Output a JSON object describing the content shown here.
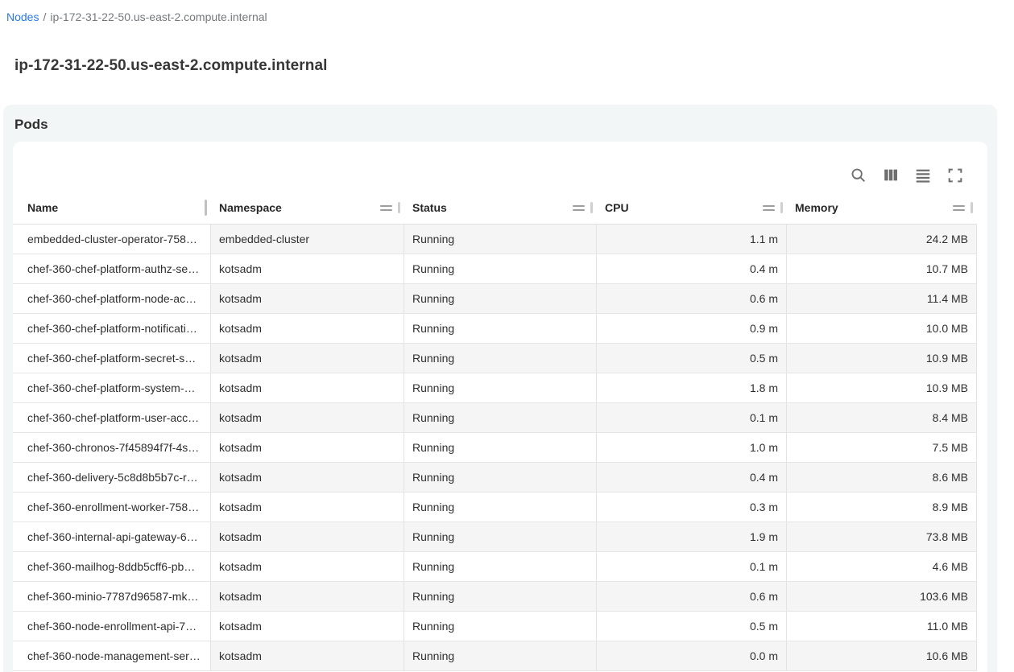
{
  "breadcrumb": {
    "link_label": "Nodes",
    "separator": "/",
    "current_label": "ip-172-31-22-50.us-east-2.compute.internal"
  },
  "page_title": "ip-172-31-22-50.us-east-2.compute.internal",
  "pods_card": {
    "title": "Pods",
    "toolbar_icons": [
      "search-icon",
      "columns-icon",
      "density-icon",
      "fullscreen-icon"
    ]
  },
  "table": {
    "columns": [
      "Name",
      "Namespace",
      "Status",
      "CPU",
      "Memory"
    ],
    "rows": [
      {
        "name": "embedded-cluster-operator-758…",
        "namespace": "embedded-cluster",
        "status": "Running",
        "cpu": "1.1 m",
        "memory": "24.2 MB"
      },
      {
        "name": "chef-360-chef-platform-authz-se…",
        "namespace": "kotsadm",
        "status": "Running",
        "cpu": "0.4 m",
        "memory": "10.7 MB"
      },
      {
        "name": "chef-360-chef-platform-node-ac…",
        "namespace": "kotsadm",
        "status": "Running",
        "cpu": "0.6 m",
        "memory": "11.4 MB"
      },
      {
        "name": "chef-360-chef-platform-notificati…",
        "namespace": "kotsadm",
        "status": "Running",
        "cpu": "0.9 m",
        "memory": "10.0 MB"
      },
      {
        "name": "chef-360-chef-platform-secret-s…",
        "namespace": "kotsadm",
        "status": "Running",
        "cpu": "0.5 m",
        "memory": "10.9 MB"
      },
      {
        "name": "chef-360-chef-platform-system-…",
        "namespace": "kotsadm",
        "status": "Running",
        "cpu": "1.8 m",
        "memory": "10.9 MB"
      },
      {
        "name": "chef-360-chef-platform-user-acc…",
        "namespace": "kotsadm",
        "status": "Running",
        "cpu": "0.1 m",
        "memory": "8.4 MB"
      },
      {
        "name": "chef-360-chronos-7f45894f7f-4s…",
        "namespace": "kotsadm",
        "status": "Running",
        "cpu": "1.0 m",
        "memory": "7.5 MB"
      },
      {
        "name": "chef-360-delivery-5c8d8b5b7c-r…",
        "namespace": "kotsadm",
        "status": "Running",
        "cpu": "0.4 m",
        "memory": "8.6 MB"
      },
      {
        "name": "chef-360-enrollment-worker-758…",
        "namespace": "kotsadm",
        "status": "Running",
        "cpu": "0.3 m",
        "memory": "8.9 MB"
      },
      {
        "name": "chef-360-internal-api-gateway-6…",
        "namespace": "kotsadm",
        "status": "Running",
        "cpu": "1.9 m",
        "memory": "73.8 MB"
      },
      {
        "name": "chef-360-mailhog-8ddb5cff6-pb…",
        "namespace": "kotsadm",
        "status": "Running",
        "cpu": "0.1 m",
        "memory": "4.6 MB"
      },
      {
        "name": "chef-360-minio-7787d96587-mk…",
        "namespace": "kotsadm",
        "status": "Running",
        "cpu": "0.6 m",
        "memory": "103.6 MB"
      },
      {
        "name": "chef-360-node-enrollment-api-7…",
        "namespace": "kotsadm",
        "status": "Running",
        "cpu": "0.5 m",
        "memory": "11.0 MB"
      },
      {
        "name": "chef-360-node-management-ser…",
        "namespace": "kotsadm",
        "status": "Running",
        "cpu": "0.0 m",
        "memory": "10.6 MB"
      }
    ]
  },
  "colors": {
    "link_blue": "#2979e9",
    "outer_card_background": "#f3f6f6",
    "row_stripe": "#f5f5f5",
    "cell_border": "#e3e3e3",
    "icon_gray": "#6d6d6d"
  }
}
